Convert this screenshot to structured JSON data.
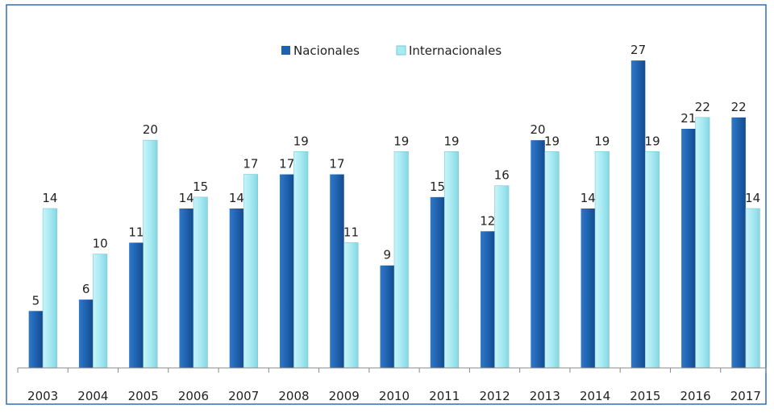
{
  "chart_data": {
    "type": "bar",
    "categories": [
      "2003",
      "2004",
      "2005",
      "2006",
      "2007",
      "2008",
      "2009",
      "2010",
      "2011",
      "2012",
      "2013",
      "2014",
      "2015",
      "2016",
      "2017"
    ],
    "series": [
      {
        "name": "Nacionales",
        "color": "#1f63b0",
        "values": [
          5,
          6,
          11,
          14,
          14,
          17,
          17,
          9,
          15,
          12,
          20,
          14,
          27,
          21,
          22
        ]
      },
      {
        "name": "Internacionales",
        "color": "#a6eaf2",
        "values": [
          14,
          10,
          20,
          15,
          17,
          19,
          11,
          19,
          19,
          16,
          19,
          19,
          19,
          22,
          14
        ]
      }
    ],
    "ylim": [
      0,
      28
    ],
    "legend": "top"
  }
}
